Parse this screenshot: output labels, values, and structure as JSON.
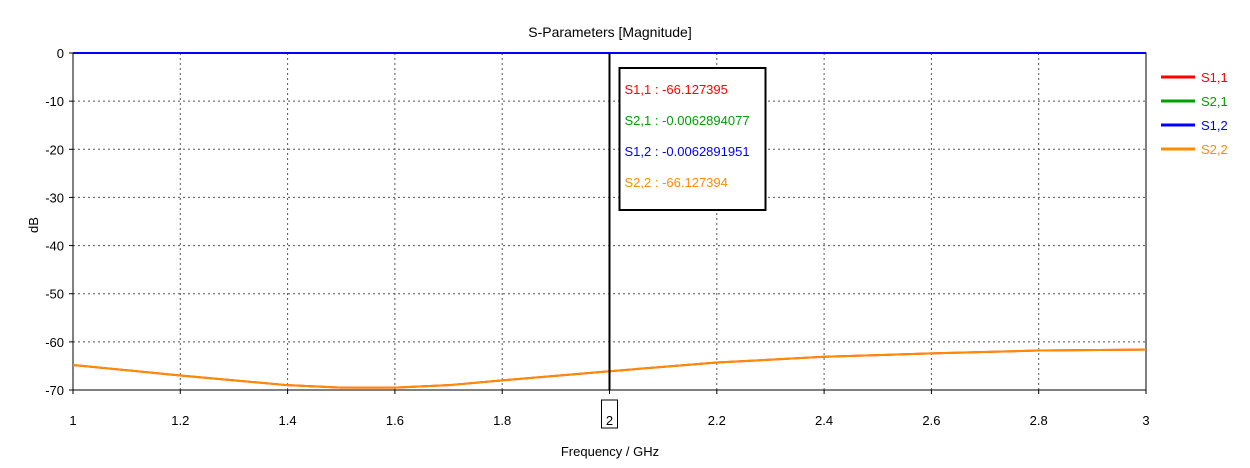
{
  "chart_data": {
    "type": "line",
    "title": "S-Parameters [Magnitude]",
    "xlabel": "Frequency / GHz",
    "ylabel": "dB",
    "xlim": [
      1,
      3
    ],
    "ylim": [
      -70,
      0
    ],
    "xticks": [
      "1",
      "1.2",
      "1.4",
      "1.6",
      "1.8",
      "2",
      "2.2",
      "2.4",
      "2.6",
      "2.8",
      "3"
    ],
    "yticks": [
      "0",
      "-10",
      "-20",
      "-30",
      "-40",
      "-50",
      "-60",
      "-70"
    ],
    "grid": true,
    "legend_position": "right",
    "cursor": {
      "x": 2,
      "label": "2",
      "readout": [
        {
          "text": "S1,1 : -66.127395",
          "color": "#ff0000"
        },
        {
          "text": "S2,1 : -0.0062894077",
          "color": "#00a000"
        },
        {
          "text": "S1,2 : -0.0062891951",
          "color": "#0000ff"
        },
        {
          "text": "S2,2 : -66.127394",
          "color": "#ff8c00"
        }
      ]
    },
    "series": [
      {
        "name": "S1,1",
        "color": "#ff0000",
        "x": [
          1.0,
          1.2,
          1.4,
          1.5,
          1.6,
          1.7,
          1.8,
          2.0,
          2.2,
          2.4,
          2.6,
          2.8,
          3.0
        ],
        "y": [
          -64.8,
          -67.0,
          -69.0,
          -69.5,
          -69.5,
          -69.0,
          -68.0,
          -66.1,
          -64.3,
          -63.1,
          -62.4,
          -61.8,
          -61.6
        ]
      },
      {
        "name": "S2,1",
        "color": "#00a000",
        "x": [
          1.0,
          2.0,
          3.0
        ],
        "y": [
          -0.006,
          -0.006,
          -0.006
        ]
      },
      {
        "name": "S1,2",
        "color": "#0000ff",
        "x": [
          1.0,
          2.0,
          3.0
        ],
        "y": [
          -0.006,
          -0.006,
          -0.006
        ]
      },
      {
        "name": "S2,2",
        "color": "#ff8c00",
        "x": [
          1.0,
          1.2,
          1.4,
          1.5,
          1.6,
          1.7,
          1.8,
          2.0,
          2.2,
          2.4,
          2.6,
          2.8,
          3.0
        ],
        "y": [
          -64.8,
          -67.0,
          -69.0,
          -69.5,
          -69.5,
          -69.0,
          -68.0,
          -66.1,
          -64.3,
          -63.1,
          -62.4,
          -61.8,
          -61.6
        ]
      }
    ]
  }
}
